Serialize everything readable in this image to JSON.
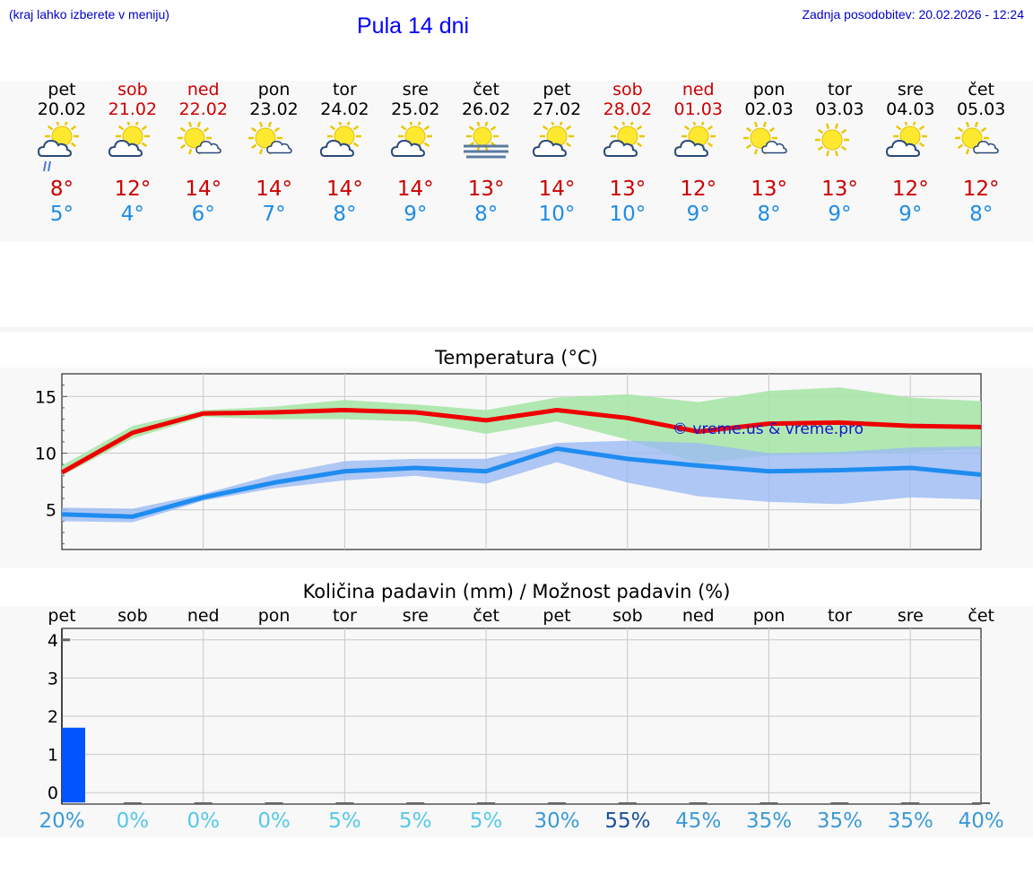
{
  "header": {
    "hint": "(kraj lahko izberete v meniju)",
    "title": "Pula 14 dni",
    "updated": "Zadnja posodobitev: 20.02.2026 - 12:24"
  },
  "days": [
    {
      "name": "pet",
      "date": "20.02",
      "weekend": false,
      "icon": "rain-sun-cloud-icon",
      "max": "8°",
      "min": "5°",
      "precip_label": "pet",
      "prob": "20%"
    },
    {
      "name": "sob",
      "date": "21.02",
      "weekend": true,
      "icon": "sun-cloud-icon",
      "max": "12°",
      "min": "4°",
      "precip_label": "sob",
      "prob": "0%"
    },
    {
      "name": "ned",
      "date": "22.02",
      "weekend": true,
      "icon": "sun-small-cloud-icon",
      "max": "14°",
      "min": "6°",
      "precip_label": "ned",
      "prob": "0%"
    },
    {
      "name": "pon",
      "date": "23.02",
      "weekend": false,
      "icon": "sun-small-cloud-icon",
      "max": "14°",
      "min": "7°",
      "precip_label": "pon",
      "prob": "0%"
    },
    {
      "name": "tor",
      "date": "24.02",
      "weekend": false,
      "icon": "sun-cloud-icon",
      "max": "14°",
      "min": "8°",
      "precip_label": "tor",
      "prob": "5%"
    },
    {
      "name": "sre",
      "date": "25.02",
      "weekend": false,
      "icon": "sun-cloud-icon",
      "max": "14°",
      "min": "9°",
      "precip_label": "sre",
      "prob": "5%"
    },
    {
      "name": "čet",
      "date": "26.02",
      "weekend": false,
      "icon": "sun-fog-icon",
      "max": "13°",
      "min": "8°",
      "precip_label": "čet",
      "prob": "5%"
    },
    {
      "name": "pet",
      "date": "27.02",
      "weekend": false,
      "icon": "sun-cloud-icon",
      "max": "14°",
      "min": "10°",
      "precip_label": "pet",
      "prob": "30%"
    },
    {
      "name": "sob",
      "date": "28.02",
      "weekend": true,
      "icon": "sun-cloud-icon",
      "max": "13°",
      "min": "10°",
      "precip_label": "sob",
      "prob": "55%"
    },
    {
      "name": "ned",
      "date": "01.03",
      "weekend": true,
      "icon": "sun-cloud-icon",
      "max": "12°",
      "min": "9°",
      "precip_label": "ned",
      "prob": "45%"
    },
    {
      "name": "pon",
      "date": "02.03",
      "weekend": false,
      "icon": "sun-small-cloud-icon",
      "max": "13°",
      "min": "8°",
      "precip_label": "pon",
      "prob": "35%"
    },
    {
      "name": "tor",
      "date": "03.03",
      "weekend": false,
      "icon": "sun-icon",
      "max": "13°",
      "min": "9°",
      "precip_label": "tor",
      "prob": "35%"
    },
    {
      "name": "sre",
      "date": "04.03",
      "weekend": false,
      "icon": "sun-cloud-icon",
      "max": "12°",
      "min": "9°",
      "precip_label": "sre",
      "prob": "35%"
    },
    {
      "name": "čet",
      "date": "05.03",
      "weekend": false,
      "icon": "sun-small-cloud-icon",
      "max": "12°",
      "min": "8°",
      "precip_label": "čet",
      "prob": "40%"
    }
  ],
  "colors": {
    "max_line": "#ee0000",
    "min_line": "#1e8cf0",
    "max_band": "#a8e6a8",
    "min_band": "#9bbaf2",
    "bar": "#0055ff",
    "watermark": "#1414cc"
  },
  "chart_data": [
    {
      "type": "line",
      "title": "Temperatura (°C)",
      "x": [
        0,
        1,
        2,
        3,
        4,
        5,
        6,
        7,
        8,
        9,
        10,
        11,
        12,
        13
      ],
      "ylim": [
        1.5,
        17
      ],
      "yticks": [
        5,
        10,
        15
      ],
      "watermark": "© vreme.us & vreme.pro",
      "series": [
        {
          "name": "max",
          "values": [
            8.3,
            11.8,
            13.5,
            13.6,
            13.8,
            13.6,
            12.9,
            13.8,
            13.1,
            11.9,
            12.6,
            12.7,
            12.4,
            12.3
          ],
          "band_low": [
            8.0,
            11.3,
            13.2,
            13.0,
            13.0,
            12.8,
            11.7,
            12.8,
            11.2,
            9.1,
            9.8,
            9.9,
            10.1,
            10.4
          ],
          "band_high": [
            8.9,
            12.4,
            13.8,
            14.1,
            14.7,
            14.3,
            13.8,
            14.9,
            15.2,
            14.5,
            15.5,
            15.8,
            14.9,
            14.6
          ]
        },
        {
          "name": "min",
          "values": [
            4.6,
            4.4,
            6.1,
            7.4,
            8.4,
            8.7,
            8.4,
            10.4,
            9.5,
            8.9,
            8.4,
            8.5,
            8.7,
            8.1
          ],
          "band_low": [
            4.0,
            3.9,
            5.8,
            6.9,
            7.6,
            8.0,
            7.3,
            9.2,
            7.4,
            6.2,
            5.7,
            5.5,
            6.1,
            5.9
          ],
          "band_high": [
            5.2,
            5.1,
            6.4,
            8.1,
            9.3,
            9.5,
            9.5,
            10.9,
            11.1,
            10.9,
            10.0,
            10.1,
            10.5,
            10.6
          ]
        }
      ]
    },
    {
      "type": "bar",
      "title": "Količina padavin (mm) / Možnost padavin (%)",
      "x": [
        0,
        1,
        2,
        3,
        4,
        5,
        6,
        7,
        8,
        9,
        10,
        11,
        12,
        13
      ],
      "values": [
        1.7,
        0,
        0,
        0,
        0,
        0,
        0,
        0,
        0,
        0,
        0,
        0,
        0,
        0
      ],
      "ylim": [
        -0.3,
        4.3
      ],
      "yticks": [
        0,
        1,
        2,
        3,
        4
      ],
      "probability": [
        "20%",
        "0%",
        "0%",
        "0%",
        "5%",
        "5%",
        "5%",
        "30%",
        "55%",
        "45%",
        "35%",
        "35%",
        "35%",
        "40%"
      ]
    }
  ]
}
